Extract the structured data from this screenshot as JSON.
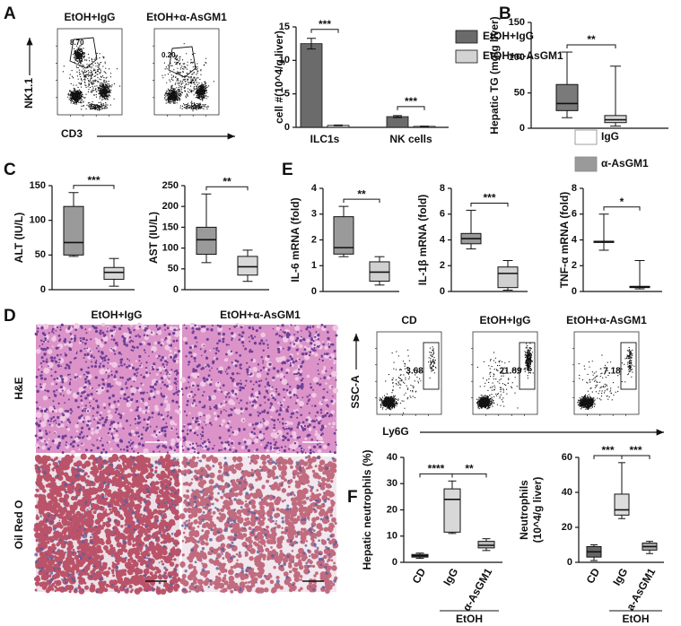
{
  "panel_labels": [
    "A",
    "B",
    "C",
    "D",
    "E",
    "F"
  ],
  "flow_a": {
    "groups": [
      "EtOH+IgG",
      "EtOH+α-AsGM1"
    ],
    "gates": [
      "8.70",
      "0.20"
    ],
    "y_label": "NK1.1",
    "x_label": "CD3"
  },
  "histology": {
    "columns": [
      "EtOH+IgG",
      "EtOH+α-AsGM1"
    ],
    "rows": [
      "H&E",
      "Oil Red O"
    ]
  },
  "flow_f": {
    "groups": [
      "CD",
      "EtOH+IgG",
      "EtOH+α-AsGM1"
    ],
    "gates": [
      "3.68",
      "21.89",
      "7.18"
    ],
    "y_label": "SSC-A",
    "x_label": "Ly6G"
  },
  "chart_data": [
    {
      "type": "bar",
      "ylabel": "cell #(10^4/g liver)",
      "categories": [
        "ILC1s",
        "NK cells"
      ],
      "series": [
        {
          "name": "EtOH+IgG",
          "color": "#6b6b6b",
          "values": [
            12.5,
            1.6
          ],
          "errors": [
            0.8,
            0.15
          ]
        },
        {
          "name": "EtOH+α-AsGM1",
          "color": "#d3d3d3",
          "values": [
            0.3,
            0.15
          ],
          "errors": [
            0.05,
            0.04
          ]
        }
      ],
      "ylim": [
        0,
        15
      ],
      "yticks": [
        0,
        5,
        10,
        15
      ],
      "annotations": [
        "***",
        "***"
      ]
    },
    {
      "type": "box",
      "ylabel": "Hepatic TG (mg/g liver)",
      "ylim": [
        0,
        150
      ],
      "yticks": [
        0,
        50,
        100,
        150
      ],
      "boxes": [
        {
          "color": "#7a7a7a",
          "min": 15,
          "q1": 25,
          "median": 35,
          "q3": 62,
          "max": 108
        },
        {
          "color": "#d8d8d8",
          "min": 3,
          "q1": 8,
          "median": 12,
          "q3": 18,
          "max": 88
        }
      ],
      "annotations": [
        "**"
      ]
    },
    {
      "type": "box",
      "ylabel": "ALT (IU/L)",
      "ylim": [
        0,
        150
      ],
      "yticks": [
        0,
        50,
        100,
        150
      ],
      "boxes": [
        {
          "color": "#9a9a9a",
          "min": 48,
          "q1": 50,
          "median": 68,
          "q3": 120,
          "max": 140
        },
        {
          "color": "#d8d8d8",
          "min": 5,
          "q1": 15,
          "median": 25,
          "q3": 32,
          "max": 45
        }
      ],
      "annotations": [
        "***"
      ]
    },
    {
      "type": "box",
      "ylabel": "AST (IU/L)",
      "ylim": [
        0,
        250
      ],
      "yticks": [
        0,
        50,
        100,
        150,
        200,
        250
      ],
      "boxes": [
        {
          "color": "#9a9a9a",
          "min": 65,
          "q1": 85,
          "median": 120,
          "q3": 150,
          "max": 230
        },
        {
          "color": "#d8d8d8",
          "min": 20,
          "q1": 35,
          "median": 55,
          "q3": 80,
          "max": 95
        }
      ],
      "annotations": [
        "**"
      ]
    },
    {
      "type": "box",
      "ylabel": "IL-6 mRNA (fold)",
      "ylim": [
        0,
        4
      ],
      "yticks": [
        0,
        1,
        2,
        3,
        4
      ],
      "boxes": [
        {
          "color": "#9a9a9a",
          "min": 1.35,
          "q1": 1.45,
          "median": 1.7,
          "q3": 2.9,
          "max": 3.3
        },
        {
          "color": "#d0d0d0",
          "min": 0.25,
          "q1": 0.4,
          "median": 0.75,
          "q3": 1.15,
          "max": 1.35
        }
      ],
      "annotations": [
        "**"
      ]
    },
    {
      "type": "box",
      "ylabel": "IL-1β mRNA (fold)",
      "ylim": [
        0,
        8
      ],
      "yticks": [
        0,
        2,
        4,
        6,
        8
      ],
      "boxes": [
        {
          "color": "#9a9a9a",
          "min": 3.3,
          "q1": 3.7,
          "median": 4.1,
          "q3": 4.5,
          "max": 6.3
        },
        {
          "color": "#d0d0d0",
          "min": 0.1,
          "q1": 0.3,
          "median": 1.4,
          "q3": 1.9,
          "max": 2.4
        }
      ],
      "annotations": [
        "***"
      ]
    },
    {
      "type": "box",
      "ylabel": "TNF-α mRNA (fold)",
      "ylim": [
        0,
        8
      ],
      "yticks": [
        0,
        2,
        4,
        6,
        8
      ],
      "boxes": [
        {
          "color": "#9a9a9a",
          "min": 3.2,
          "q1": 3.8,
          "median": 3.85,
          "q3": 3.9,
          "max": 6.0
        },
        {
          "color": "#d0d0d0",
          "min": 0.2,
          "q1": 0.3,
          "median": 0.35,
          "q3": 0.4,
          "max": 2.4
        }
      ],
      "annotations": [
        "*"
      ],
      "legend": [
        {
          "name": "IgG",
          "color": "#ffffff"
        },
        {
          "name": "α-AsGM1",
          "color": "#9a9a9a"
        }
      ]
    },
    {
      "type": "box",
      "ylabel": "Hepatic neutrophils (%)",
      "ylim": [
        0,
        40
      ],
      "yticks": [
        0,
        10,
        20,
        30,
        40
      ],
      "categories": [
        "CD",
        "IgG",
        "α-AsGM1"
      ],
      "group_label": "EtOH",
      "boxes": [
        {
          "color": "#777777",
          "min": 1.5,
          "q1": 2,
          "median": 2.5,
          "q3": 3,
          "max": 3.5
        },
        {
          "color": "#d8d8d8",
          "min": 11,
          "q1": 11.5,
          "median": 24,
          "q3": 28,
          "max": 31
        },
        {
          "color": "#bbbbbb",
          "min": 4.5,
          "q1": 5.5,
          "median": 6.5,
          "q3": 8,
          "max": 9
        }
      ],
      "annotations": [
        "****",
        "**"
      ]
    },
    {
      "type": "box",
      "ylabel": [
        "Neutrophils",
        "(10^4/g liver)"
      ],
      "ylim": [
        0,
        60
      ],
      "yticks": [
        0,
        20,
        40,
        60
      ],
      "categories": [
        "CD",
        "IgG",
        "a-AsGM1"
      ],
      "group_label": "EtOH",
      "boxes": [
        {
          "color": "#666666",
          "min": 1,
          "q1": 3,
          "median": 6,
          "q3": 9,
          "max": 10
        },
        {
          "color": "#dddddd",
          "min": 25,
          "q1": 27,
          "median": 30,
          "q3": 39,
          "max": 57
        },
        {
          "color": "#aaaaaa",
          "min": 5,
          "q1": 7,
          "median": 9,
          "q3": 11,
          "max": 12
        }
      ],
      "annotations": [
        "***",
        "***"
      ]
    }
  ]
}
